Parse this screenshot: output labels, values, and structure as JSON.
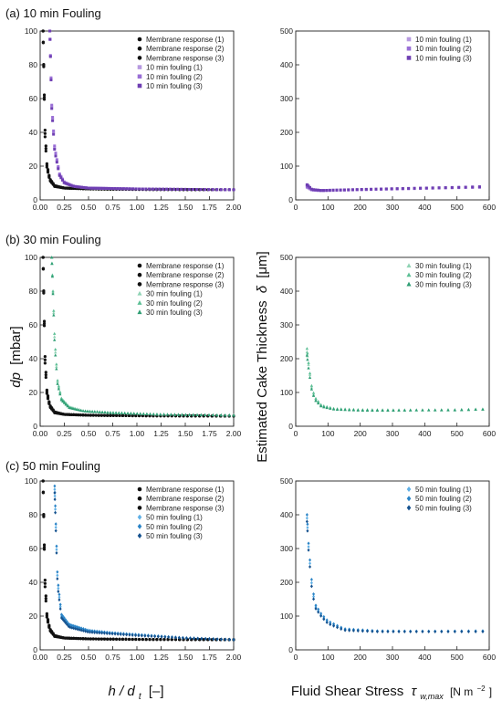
{
  "rows": [
    {
      "title": "(a) 10 min Fouling",
      "left_legend": [
        "Membrane response (1)",
        "Membrane response (2)",
        "Membrane response (3)",
        "10 min fouling (1)",
        "10 min fouling (2)",
        "10 min fouling (3)"
      ],
      "right_legend": [
        "10 min fouling (1)",
        "10 min fouling (2)",
        "10 min fouling (3)"
      ],
      "marker": "square",
      "colors": [
        "#b79ae0",
        "#9a6fd6",
        "#6f3fb3"
      ]
    },
    {
      "title": "(b) 30 min Fouling",
      "left_legend": [
        "Membrane response (1)",
        "Membrane response (2)",
        "Membrane response (3)",
        "30 min fouling (1)",
        "30 min fouling (2)",
        "30 min fouling (3)"
      ],
      "right_legend": [
        "30 min fouling (1)",
        "30 min fouling (2)",
        "30 min fouling (3)"
      ],
      "marker": "triangle",
      "colors": [
        "#8fd3b4",
        "#5cbf95",
        "#2f9e74"
      ]
    },
    {
      "title": "(c) 50 min Fouling",
      "left_legend": [
        "Membrane response (1)",
        "Membrane response (2)",
        "Membrane response (3)",
        "50 min fouling (1)",
        "50 min fouling (2)",
        "50 min fouling (3)"
      ],
      "right_legend": [
        "50 min fouling (1)",
        "50 min fouling (2)",
        "50 min fouling (3)"
      ],
      "marker": "diamond",
      "colors": [
        "#5fb0e6",
        "#2a84c7",
        "#15528f"
      ]
    }
  ],
  "axes": {
    "left_ylabel_main": "dp",
    "left_ylabel_unit": "[mbar]",
    "right_ylabel_main": "Estimated Cake Thickness",
    "right_ylabel_symbol": "δ",
    "right_ylabel_unit": "[μm]",
    "left_xlabel_main": "h / d",
    "left_xlabel_sub": "t",
    "left_xlabel_unit": "[–]",
    "right_xlabel_main": "Fluid Shear Stress",
    "right_xlabel_symbol": "τ",
    "right_xlabel_sub": "w,max",
    "right_xlabel_unit": "[N m",
    "right_xlabel_exp": "−2",
    "right_xlabel_close": "]",
    "left_xticks": [
      "0.00",
      "0.25",
      "0.50",
      "0.75",
      "1.00",
      "1.25",
      "1.50",
      "1.75",
      "2.00"
    ],
    "left_yticks": [
      "0",
      "20",
      "40",
      "60",
      "80",
      "100"
    ],
    "right_xticks": [
      "0",
      "100",
      "200",
      "300",
      "400",
      "500",
      "600"
    ],
    "right_yticks": [
      "0",
      "100",
      "200",
      "300",
      "400",
      "500"
    ]
  },
  "membrane_color": "#111111",
  "chart_data": [
    {
      "type": "scatter",
      "xlim": [
        0,
        2
      ],
      "ylim": [
        0,
        100
      ],
      "series": [
        {
          "name": "Membrane response (1)",
          "x": [
            0.03,
            0.05,
            0.07,
            0.1,
            0.15,
            0.25,
            0.5,
            1.0,
            2.0
          ],
          "y": [
            100,
            40,
            20,
            12,
            8,
            7,
            6.5,
            6.2,
            6
          ]
        },
        {
          "name": "Membrane response (2)",
          "x": [
            0.03,
            0.05,
            0.07,
            0.1,
            0.15,
            0.25,
            0.5,
            1.0,
            2.0
          ],
          "y": [
            100,
            42,
            21,
            12.5,
            8.5,
            7,
            6.5,
            6.2,
            6
          ]
        },
        {
          "name": "Membrane response (3)",
          "x": [
            0.03,
            0.05,
            0.07,
            0.1,
            0.15,
            0.25,
            0.5,
            1.0,
            2.0
          ],
          "y": [
            100,
            38,
            19,
            11.5,
            8,
            7,
            6.5,
            6.2,
            6
          ]
        },
        {
          "name": "10 min fouling (1)",
          "x": [
            0.1,
            0.12,
            0.15,
            0.2,
            0.25,
            0.35,
            0.5,
            1.0,
            2.0
          ],
          "y": [
            100,
            55,
            30,
            15,
            10,
            8,
            7,
            6.5,
            6
          ]
        },
        {
          "name": "10 min fouling (2)",
          "x": [
            0.1,
            0.12,
            0.15,
            0.2,
            0.25,
            0.35,
            0.5,
            1.0,
            2.0
          ],
          "y": [
            100,
            56,
            31,
            15.5,
            10.5,
            8,
            7,
            6.5,
            6
          ]
        },
        {
          "name": "10 min fouling (3)",
          "x": [
            0.1,
            0.12,
            0.15,
            0.2,
            0.25,
            0.35,
            0.5,
            1.0,
            2.0
          ],
          "y": [
            100,
            54,
            29,
            14.5,
            10,
            8,
            7,
            6.5,
            6
          ]
        }
      ]
    },
    {
      "type": "scatter",
      "xlim": [
        0,
        600
      ],
      "ylim": [
        0,
        500
      ],
      "series": [
        {
          "name": "10 min fouling (1)",
          "x": [
            35,
            50,
            80,
            120,
            200,
            300,
            400,
            500,
            570
          ],
          "y": [
            42,
            30,
            28,
            29,
            30,
            33,
            35,
            37,
            38
          ]
        },
        {
          "name": "10 min fouling (2)",
          "x": [
            35,
            50,
            80,
            120,
            200,
            300,
            400,
            500,
            570
          ],
          "y": [
            38,
            29,
            27,
            28,
            30,
            32,
            34,
            36,
            37
          ]
        },
        {
          "name": "10 min fouling (3)",
          "x": [
            35,
            50,
            80,
            120,
            200,
            300,
            400,
            500,
            570
          ],
          "y": [
            45,
            31,
            28,
            29,
            31,
            33,
            35,
            37,
            39
          ]
        }
      ]
    },
    {
      "type": "scatter",
      "xlim": [
        0,
        2
      ],
      "ylim": [
        0,
        100
      ],
      "series": [
        {
          "name": "Membrane response (1)",
          "x": [
            0.03,
            0.05,
            0.07,
            0.1,
            0.15,
            0.25,
            0.5,
            1.0,
            2.0
          ],
          "y": [
            100,
            40,
            20,
            12,
            8,
            7,
            6.5,
            6.2,
            6
          ]
        },
        {
          "name": "Membrane response (2)",
          "x": [
            0.03,
            0.05,
            0.07,
            0.1,
            0.15,
            0.25,
            0.5,
            1.0,
            2.0
          ],
          "y": [
            100,
            42,
            21,
            12.5,
            8.5,
            7,
            6.5,
            6.2,
            6
          ]
        },
        {
          "name": "Membrane response (3)",
          "x": [
            0.03,
            0.05,
            0.07,
            0.1,
            0.15,
            0.25,
            0.5,
            1.0,
            2.0
          ],
          "y": [
            100,
            38,
            19,
            11.5,
            8,
            7,
            6.5,
            6.2,
            6
          ]
        },
        {
          "name": "30 min fouling (1)",
          "x": [
            0.12,
            0.15,
            0.18,
            0.22,
            0.3,
            0.45,
            0.75,
            1.25,
            2.0
          ],
          "y": [
            100,
            50,
            26,
            16,
            11,
            9,
            8,
            7,
            6.5
          ]
        },
        {
          "name": "30 min fouling (2)",
          "x": [
            0.12,
            0.15,
            0.18,
            0.22,
            0.3,
            0.45,
            0.75,
            1.25,
            2.0
          ],
          "y": [
            100,
            52,
            27,
            16.5,
            11.5,
            9,
            8,
            7,
            6.5
          ]
        },
        {
          "name": "30 min fouling (3)",
          "x": [
            0.12,
            0.15,
            0.18,
            0.22,
            0.3,
            0.45,
            0.75,
            1.25,
            2.0
          ],
          "y": [
            100,
            48,
            25,
            15.5,
            11,
            9,
            8,
            7,
            6.5
          ]
        }
      ]
    },
    {
      "type": "scatter",
      "xlim": [
        0,
        600
      ],
      "ylim": [
        0,
        500
      ],
      "series": [
        {
          "name": "30 min fouling (1)",
          "x": [
            35,
            40,
            50,
            60,
            80,
            120,
            200,
            300,
            400,
            500,
            580
          ],
          "y": [
            220,
            180,
            110,
            80,
            60,
            50,
            48,
            48,
            48,
            48,
            50
          ]
        },
        {
          "name": "30 min fouling (2)",
          "x": [
            35,
            40,
            50,
            60,
            80,
            120,
            200,
            300,
            400,
            500,
            580
          ],
          "y": [
            230,
            185,
            115,
            85,
            62,
            52,
            49,
            48,
            48,
            49,
            51
          ]
        },
        {
          "name": "30 min fouling (3)",
          "x": [
            35,
            40,
            50,
            60,
            80,
            120,
            200,
            300,
            400,
            500,
            580
          ],
          "y": [
            210,
            170,
            105,
            78,
            58,
            50,
            47,
            47,
            48,
            48,
            50
          ]
        }
      ]
    },
    {
      "type": "scatter",
      "xlim": [
        0,
        2
      ],
      "ylim": [
        0,
        100
      ],
      "series": [
        {
          "name": "Membrane response (1)",
          "x": [
            0.03,
            0.05,
            0.07,
            0.1,
            0.15,
            0.25,
            0.5,
            1.0,
            2.0
          ],
          "y": [
            100,
            40,
            20,
            12,
            8,
            7,
            6.5,
            6.2,
            6
          ]
        },
        {
          "name": "Membrane response (2)",
          "x": [
            0.03,
            0.05,
            0.07,
            0.1,
            0.15,
            0.25,
            0.5,
            1.0,
            2.0
          ],
          "y": [
            100,
            42,
            21,
            12.5,
            8.5,
            7,
            6.5,
            6.2,
            6
          ]
        },
        {
          "name": "Membrane response (3)",
          "x": [
            0.03,
            0.05,
            0.07,
            0.1,
            0.15,
            0.25,
            0.5,
            1.0,
            2.0
          ],
          "y": [
            100,
            38,
            19,
            11.5,
            8,
            7,
            6.5,
            6.2,
            6
          ]
        },
        {
          "name": "50 min fouling (1)",
          "x": [
            0.15,
            0.18,
            0.22,
            0.3,
            0.5,
            0.75,
            1.0,
            1.5,
            2.0
          ],
          "y": [
            95,
            40,
            20,
            14,
            11,
            10,
            9,
            7,
            6
          ]
        },
        {
          "name": "50 min fouling (2)",
          "x": [
            0.15,
            0.18,
            0.22,
            0.3,
            0.5,
            0.75,
            1.0,
            1.5,
            2.0
          ],
          "y": [
            97,
            42,
            21,
            15,
            11.5,
            10,
            9,
            7,
            6
          ]
        },
        {
          "name": "50 min fouling (3)",
          "x": [
            0.15,
            0.18,
            0.22,
            0.3,
            0.5,
            0.75,
            1.0,
            1.5,
            2.0
          ],
          "y": [
            93,
            38,
            19,
            13.5,
            10.5,
            9.5,
            8.5,
            7,
            6
          ]
        }
      ]
    },
    {
      "type": "scatter",
      "xlim": [
        0,
        600
      ],
      "ylim": [
        0,
        500
      ],
      "series": [
        {
          "name": "50 min fouling (1)",
          "x": [
            35,
            40,
            50,
            60,
            80,
            100,
            150,
            250,
            350,
            450,
            580
          ],
          "y": [
            390,
            300,
            190,
            130,
            100,
            80,
            60,
            55,
            55,
            55,
            55
          ]
        },
        {
          "name": "50 min fouling (2)",
          "x": [
            35,
            40,
            50,
            60,
            80,
            100,
            150,
            250,
            350,
            450,
            580
          ],
          "y": [
            400,
            310,
            200,
            135,
            105,
            85,
            62,
            56,
            55,
            55,
            56
          ]
        },
        {
          "name": "50 min fouling (3)",
          "x": [
            35,
            40,
            50,
            60,
            80,
            100,
            150,
            250,
            350,
            450,
            580
          ],
          "y": [
            380,
            290,
            180,
            125,
            98,
            78,
            58,
            54,
            54,
            54,
            54
          ]
        }
      ]
    }
  ]
}
